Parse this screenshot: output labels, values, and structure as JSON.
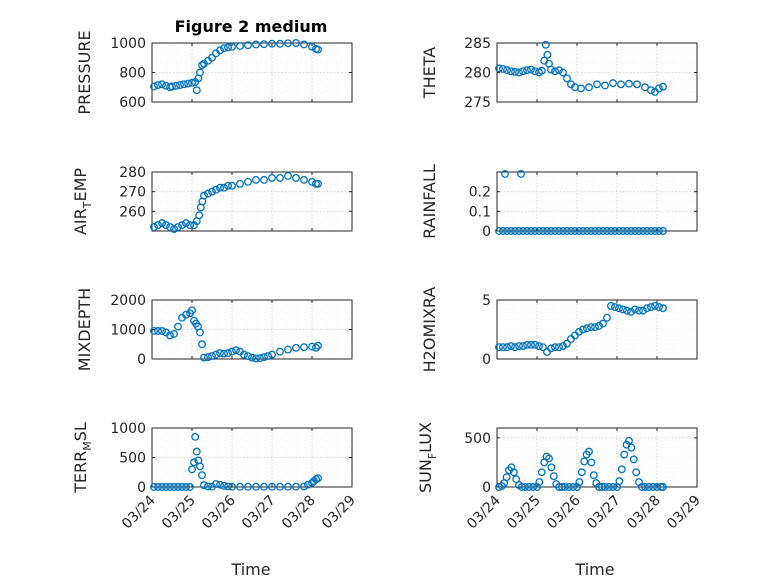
{
  "figure": {
    "title": "Figure 2 medium",
    "xlabel": "Time"
  },
  "chart_data": [
    {
      "type": "scatter",
      "id": "pressure",
      "ylabel": {
        "main": "PRESSURE",
        "sub": ""
      },
      "ylim": [
        600,
        1000
      ],
      "yticks": [
        600,
        800,
        1000
      ],
      "xlim": [
        0,
        5
      ],
      "xticks": [
        "03/24",
        "03/25",
        "03/26",
        "03/27",
        "03/28",
        "03/29"
      ],
      "grid": true,
      "marker": "circle",
      "color": "#0072BD",
      "x": [
        0.05,
        0.15,
        0.25,
        0.35,
        0.45,
        0.5,
        0.6,
        0.7,
        0.8,
        0.9,
        1.0,
        1.08,
        1.12,
        1.16,
        1.2,
        1.25,
        1.3,
        1.4,
        1.5,
        1.6,
        1.7,
        1.8,
        1.9,
        2.0,
        2.2,
        2.4,
        2.6,
        2.8,
        3.0,
        3.2,
        3.4,
        3.6,
        3.8,
        4.0,
        4.1,
        4.15
      ],
      "y": [
        705,
        715,
        720,
        710,
        700,
        705,
        710,
        715,
        720,
        725,
        730,
        735,
        680,
        760,
        800,
        850,
        860,
        880,
        900,
        930,
        950,
        965,
        970,
        975,
        980,
        985,
        990,
        992,
        995,
        995,
        998,
        1000,
        990,
        975,
        960,
        955
      ]
    },
    {
      "type": "scatter",
      "id": "theta",
      "ylabel": {
        "main": "THETA",
        "sub": ""
      },
      "ylim": [
        275,
        285
      ],
      "yticks": [
        275,
        280,
        285
      ],
      "xlim": [
        0,
        5
      ],
      "grid": true,
      "marker": "circle",
      "color": "#0072BD",
      "x": [
        0.05,
        0.15,
        0.25,
        0.35,
        0.45,
        0.55,
        0.65,
        0.75,
        0.85,
        0.95,
        1.05,
        1.12,
        1.18,
        1.22,
        1.26,
        1.3,
        1.35,
        1.45,
        1.55,
        1.65,
        1.75,
        1.85,
        1.95,
        2.1,
        2.3,
        2.5,
        2.7,
        2.9,
        3.1,
        3.3,
        3.5,
        3.7,
        3.85,
        3.95,
        4.05,
        4.15
      ],
      "y": [
        280.7,
        280.6,
        280.4,
        280.2,
        280.1,
        280.0,
        280.2,
        280.4,
        280.5,
        280.2,
        280.0,
        280.3,
        282.0,
        284.7,
        283.0,
        281.5,
        280.5,
        280.2,
        280.4,
        280.0,
        279.0,
        278.0,
        277.5,
        277.3,
        277.5,
        278.0,
        277.8,
        278.2,
        278.0,
        278.1,
        278.0,
        277.5,
        277.0,
        276.7,
        277.3,
        277.6
      ]
    },
    {
      "type": "scatter",
      "id": "air_temp",
      "ylabel": {
        "main": "AIR",
        "sub": "T",
        "tail": "EMP"
      },
      "ylim": [
        250,
        280
      ],
      "yticks": [
        260,
        270,
        280
      ],
      "xlim": [
        0,
        5
      ],
      "grid": true,
      "marker": "circle",
      "color": "#0072BD",
      "x": [
        0.05,
        0.15,
        0.25,
        0.35,
        0.45,
        0.55,
        0.65,
        0.75,
        0.85,
        0.95,
        1.05,
        1.12,
        1.18,
        1.22,
        1.26,
        1.3,
        1.4,
        1.5,
        1.6,
        1.7,
        1.8,
        1.9,
        2.0,
        2.2,
        2.4,
        2.6,
        2.8,
        3.0,
        3.2,
        3.4,
        3.6,
        3.8,
        4.0,
        4.1,
        4.15
      ],
      "y": [
        252,
        253,
        254,
        253,
        252,
        251,
        252,
        253,
        254,
        253,
        253,
        255,
        258,
        262,
        265,
        268,
        269,
        270,
        271,
        272,
        272,
        273,
        273,
        274,
        275,
        276,
        276,
        277,
        277,
        278,
        277,
        276,
        275,
        274,
        274
      ]
    },
    {
      "type": "scatter",
      "id": "rainfall",
      "ylabel": {
        "main": "RAINFALL",
        "sub": ""
      },
      "ylim": [
        0,
        0.3
      ],
      "yticks": [
        0,
        0.1,
        0.2
      ],
      "xlim": [
        0,
        5
      ],
      "grid": true,
      "marker": "circle",
      "color": "#0072BD",
      "x": [
        0.05,
        0.15,
        0.2,
        0.25,
        0.35,
        0.45,
        0.55,
        0.6,
        0.65,
        0.75,
        0.85,
        0.95,
        1.05,
        1.15,
        1.25,
        1.35,
        1.45,
        1.55,
        1.65,
        1.75,
        1.85,
        1.95,
        2.05,
        2.15,
        2.25,
        2.35,
        2.45,
        2.55,
        2.65,
        2.75,
        2.85,
        2.95,
        3.05,
        3.15,
        3.25,
        3.35,
        3.45,
        3.55,
        3.65,
        3.75,
        3.85,
        3.95,
        4.05,
        4.15
      ],
      "y": [
        0,
        0,
        0.29,
        0,
        0,
        0,
        0,
        0.29,
        0,
        0,
        0,
        0,
        0,
        0,
        0,
        0,
        0,
        0,
        0,
        0,
        0,
        0,
        0,
        0,
        0,
        0,
        0,
        0,
        0,
        0,
        0,
        0,
        0,
        0,
        0,
        0,
        0,
        0,
        0,
        0,
        0,
        0,
        0,
        0
      ]
    },
    {
      "type": "scatter",
      "id": "mixdepth",
      "ylabel": {
        "main": "MIXDEPTH",
        "sub": ""
      },
      "ylim": [
        0,
        2000
      ],
      "yticks": [
        0,
        1000,
        2000
      ],
      "xlim": [
        0,
        5
      ],
      "grid": true,
      "marker": "circle",
      "color": "#0072BD",
      "x": [
        0.05,
        0.15,
        0.25,
        0.35,
        0.45,
        0.55,
        0.65,
        0.75,
        0.85,
        0.95,
        1.0,
        1.05,
        1.1,
        1.15,
        1.2,
        1.25,
        1.3,
        1.4,
        1.5,
        1.6,
        1.7,
        1.8,
        1.9,
        2.0,
        2.1,
        2.2,
        2.3,
        2.4,
        2.5,
        2.6,
        2.7,
        2.8,
        2.9,
        3.0,
        3.2,
        3.4,
        3.6,
        3.8,
        4.0,
        4.1,
        4.15
      ],
      "y": [
        950,
        950,
        950,
        900,
        800,
        850,
        1100,
        1400,
        1500,
        1550,
        1650,
        1300,
        1200,
        1100,
        900,
        500,
        50,
        60,
        100,
        150,
        200,
        180,
        200,
        250,
        300,
        250,
        150,
        100,
        50,
        20,
        30,
        60,
        100,
        150,
        250,
        320,
        380,
        400,
        420,
        380,
        450
      ]
    },
    {
      "type": "scatter",
      "id": "h2omixra",
      "ylabel": {
        "main": "H2OMIXRA",
        "sub": ""
      },
      "ylim": [
        0,
        5
      ],
      "yticks": [
        0,
        5
      ],
      "xlim": [
        0,
        5
      ],
      "grid": true,
      "marker": "circle",
      "color": "#0072BD",
      "x": [
        0.05,
        0.15,
        0.25,
        0.35,
        0.45,
        0.55,
        0.65,
        0.75,
        0.85,
        0.95,
        1.05,
        1.15,
        1.25,
        1.35,
        1.45,
        1.55,
        1.65,
        1.75,
        1.85,
        1.95,
        2.05,
        2.15,
        2.25,
        2.35,
        2.45,
        2.55,
        2.65,
        2.75,
        2.85,
        2.95,
        3.05,
        3.15,
        3.25,
        3.35,
        3.45,
        3.55,
        3.65,
        3.75,
        3.85,
        3.95,
        4.05,
        4.15
      ],
      "y": [
        1.0,
        1.0,
        1.0,
        1.1,
        1.0,
        1.1,
        1.1,
        1.2,
        1.2,
        1.2,
        1.1,
        1.0,
        0.6,
        0.9,
        1.0,
        1.0,
        1.1,
        1.3,
        1.7,
        2.0,
        2.3,
        2.5,
        2.6,
        2.7,
        2.7,
        2.8,
        3.0,
        3.5,
        4.5,
        4.4,
        4.3,
        4.2,
        4.1,
        4.0,
        4.2,
        4.1,
        4.1,
        4.3,
        4.4,
        4.5,
        4.4,
        4.3
      ]
    },
    {
      "type": "scatter",
      "id": "terr_msl",
      "ylabel": {
        "main": "TERR",
        "sub": "M",
        "tail": "SL"
      },
      "ylim": [
        0,
        1000
      ],
      "yticks": [
        0,
        500,
        1000
      ],
      "xlim": [
        0,
        5
      ],
      "grid": true,
      "marker": "circle",
      "color": "#0072BD",
      "x": [
        0.05,
        0.15,
        0.25,
        0.35,
        0.45,
        0.55,
        0.65,
        0.75,
        0.85,
        0.95,
        1.0,
        1.05,
        1.08,
        1.12,
        1.16,
        1.2,
        1.25,
        1.3,
        1.4,
        1.5,
        1.6,
        1.7,
        1.8,
        1.9,
        2.0,
        2.2,
        2.4,
        2.6,
        2.8,
        3.0,
        3.2,
        3.4,
        3.6,
        3.8,
        3.9,
        4.0,
        4.05,
        4.1,
        4.15
      ],
      "y": [
        0,
        0,
        0,
        0,
        0,
        0,
        0,
        0,
        0,
        0,
        300,
        420,
        850,
        600,
        450,
        350,
        200,
        30,
        10,
        5,
        50,
        40,
        20,
        10,
        5,
        5,
        5,
        5,
        5,
        5,
        5,
        5,
        5,
        10,
        40,
        70,
        100,
        130,
        150
      ]
    },
    {
      "type": "scatter",
      "id": "sun_flux",
      "ylabel": {
        "main": "SUN",
        "sub": "F",
        "tail": "LUX"
      },
      "ylim": [
        0,
        600
      ],
      "yticks": [
        0,
        500
      ],
      "xlim": [
        0,
        5
      ],
      "grid": true,
      "marker": "circle",
      "color": "#0072BD",
      "x": [
        0.05,
        0.12,
        0.18,
        0.24,
        0.3,
        0.36,
        0.42,
        0.48,
        0.55,
        0.62,
        0.7,
        0.8,
        0.9,
        1.0,
        1.06,
        1.12,
        1.18,
        1.24,
        1.3,
        1.36,
        1.42,
        1.48,
        1.55,
        1.62,
        1.7,
        1.8,
        1.9,
        2.0,
        2.06,
        2.12,
        2.18,
        2.24,
        2.3,
        2.36,
        2.42,
        2.48,
        2.55,
        2.62,
        2.7,
        2.8,
        2.9,
        3.0,
        3.06,
        3.12,
        3.18,
        3.24,
        3.3,
        3.36,
        3.42,
        3.48,
        3.55,
        3.62,
        3.7,
        3.8,
        3.9,
        4.0,
        4.1,
        4.15
      ],
      "y": [
        0,
        10,
        40,
        100,
        170,
        200,
        150,
        80,
        20,
        0,
        0,
        0,
        0,
        0,
        50,
        150,
        250,
        310,
        290,
        200,
        110,
        30,
        0,
        0,
        0,
        0,
        0,
        0,
        50,
        150,
        260,
        330,
        360,
        250,
        120,
        40,
        0,
        0,
        0,
        0,
        0,
        0,
        60,
        180,
        330,
        430,
        470,
        400,
        280,
        150,
        50,
        0,
        0,
        0,
        0,
        0,
        0,
        0
      ]
    }
  ]
}
